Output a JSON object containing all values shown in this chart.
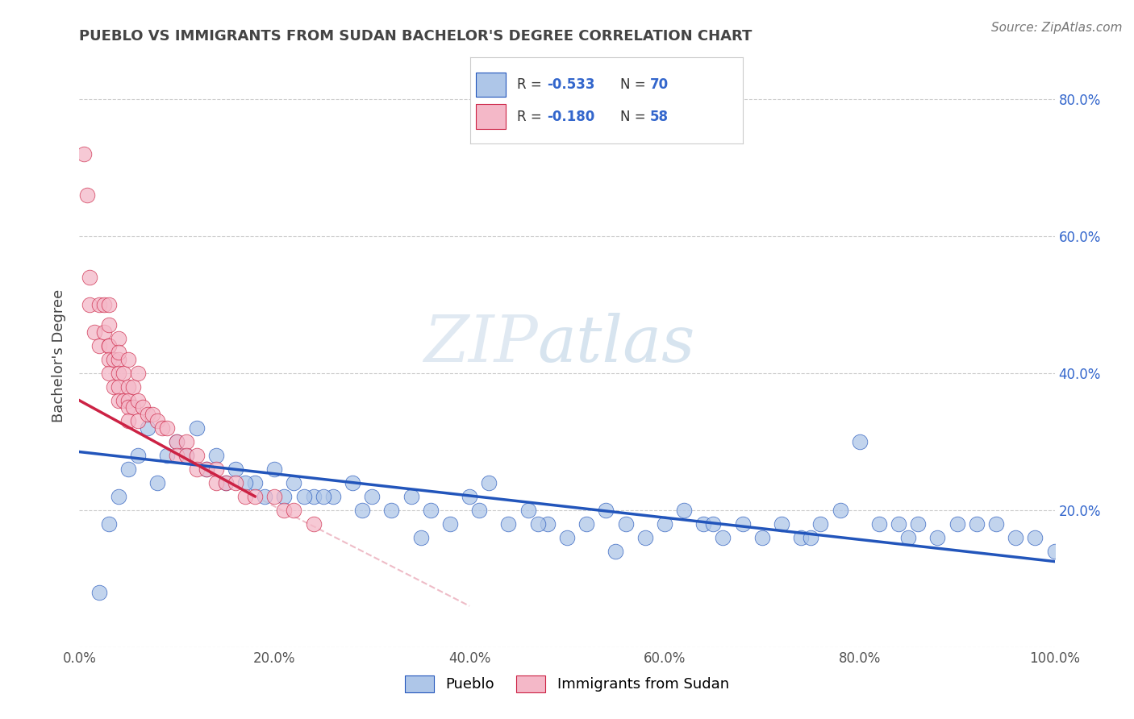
{
  "title": "PUEBLO VS IMMIGRANTS FROM SUDAN BACHELOR'S DEGREE CORRELATION CHART",
  "source": "Source: ZipAtlas.com",
  "ylabel": "Bachelor's Degree",
  "watermark_zip": "ZIP",
  "watermark_atlas": "atlas",
  "blue_color": "#aec6e8",
  "pink_color": "#f4b8c8",
  "line_blue": "#2255bb",
  "line_pink": "#cc2244",
  "line_dash_color": "#e8a0b0",
  "title_color": "#444444",
  "source_color": "#777777",
  "legend_value_color": "#3366cc",
  "right_tick_color": "#3366cc",
  "xlim": [
    0.0,
    1.0
  ],
  "ylim": [
    0.0,
    0.85
  ],
  "xticks": [
    0.0,
    0.2,
    0.4,
    0.6,
    0.8,
    1.0
  ],
  "yticks": [
    0.0,
    0.2,
    0.4,
    0.6,
    0.8
  ],
  "xticklabels": [
    "0.0%",
    "20.0%",
    "40.0%",
    "60.0%",
    "80.0%",
    "100.0%"
  ],
  "right_yticklabels": [
    "20.0%",
    "40.0%",
    "60.0%",
    "80.0%"
  ],
  "pueblo_x": [
    0.02,
    0.04,
    0.06,
    0.08,
    0.1,
    0.12,
    0.14,
    0.16,
    0.18,
    0.2,
    0.22,
    0.24,
    0.26,
    0.28,
    0.3,
    0.32,
    0.34,
    0.36,
    0.38,
    0.4,
    0.42,
    0.44,
    0.46,
    0.48,
    0.5,
    0.52,
    0.54,
    0.56,
    0.58,
    0.6,
    0.62,
    0.64,
    0.66,
    0.68,
    0.7,
    0.72,
    0.74,
    0.76,
    0.78,
    0.8,
    0.82,
    0.84,
    0.86,
    0.88,
    0.9,
    0.92,
    0.94,
    0.96,
    0.98,
    1.0,
    0.03,
    0.05,
    0.07,
    0.09,
    0.11,
    0.13,
    0.15,
    0.17,
    0.19,
    0.21,
    0.23,
    0.25,
    0.29,
    0.35,
    0.41,
    0.47,
    0.55,
    0.65,
    0.75,
    0.85
  ],
  "pueblo_y": [
    0.08,
    0.22,
    0.28,
    0.24,
    0.3,
    0.32,
    0.28,
    0.26,
    0.24,
    0.26,
    0.24,
    0.22,
    0.22,
    0.24,
    0.22,
    0.2,
    0.22,
    0.2,
    0.18,
    0.22,
    0.24,
    0.18,
    0.2,
    0.18,
    0.16,
    0.18,
    0.2,
    0.18,
    0.16,
    0.18,
    0.2,
    0.18,
    0.16,
    0.18,
    0.16,
    0.18,
    0.16,
    0.18,
    0.2,
    0.3,
    0.18,
    0.18,
    0.18,
    0.16,
    0.18,
    0.18,
    0.18,
    0.16,
    0.16,
    0.14,
    0.18,
    0.26,
    0.32,
    0.28,
    0.28,
    0.26,
    0.24,
    0.24,
    0.22,
    0.22,
    0.22,
    0.22,
    0.2,
    0.16,
    0.2,
    0.18,
    0.14,
    0.18,
    0.16,
    0.16
  ],
  "sudan_x": [
    0.005,
    0.008,
    0.01,
    0.01,
    0.015,
    0.02,
    0.02,
    0.025,
    0.025,
    0.03,
    0.03,
    0.03,
    0.03,
    0.035,
    0.035,
    0.04,
    0.04,
    0.04,
    0.04,
    0.045,
    0.045,
    0.05,
    0.05,
    0.05,
    0.05,
    0.055,
    0.055,
    0.06,
    0.06,
    0.065,
    0.07,
    0.075,
    0.08,
    0.085,
    0.09,
    0.1,
    0.1,
    0.11,
    0.11,
    0.12,
    0.12,
    0.13,
    0.14,
    0.14,
    0.15,
    0.16,
    0.17,
    0.18,
    0.2,
    0.21,
    0.22,
    0.24,
    0.03,
    0.03,
    0.04,
    0.04,
    0.05,
    0.06
  ],
  "sudan_y": [
    0.72,
    0.66,
    0.54,
    0.5,
    0.46,
    0.5,
    0.44,
    0.5,
    0.46,
    0.44,
    0.44,
    0.42,
    0.4,
    0.42,
    0.38,
    0.42,
    0.4,
    0.38,
    0.36,
    0.4,
    0.36,
    0.38,
    0.36,
    0.35,
    0.33,
    0.38,
    0.35,
    0.36,
    0.33,
    0.35,
    0.34,
    0.34,
    0.33,
    0.32,
    0.32,
    0.3,
    0.28,
    0.3,
    0.28,
    0.28,
    0.26,
    0.26,
    0.26,
    0.24,
    0.24,
    0.24,
    0.22,
    0.22,
    0.22,
    0.2,
    0.2,
    0.18,
    0.5,
    0.47,
    0.45,
    0.43,
    0.42,
    0.4
  ],
  "blue_line_x0": 0.0,
  "blue_line_y0": 0.285,
  "blue_line_x1": 1.0,
  "blue_line_y1": 0.125,
  "pink_line_x0": 0.0,
  "pink_line_y0": 0.36,
  "pink_line_x1": 0.18,
  "pink_line_y1": 0.22,
  "dash_line_x0": 0.18,
  "dash_line_y0": 0.22,
  "dash_line_x1": 0.4,
  "dash_line_y1": 0.06
}
